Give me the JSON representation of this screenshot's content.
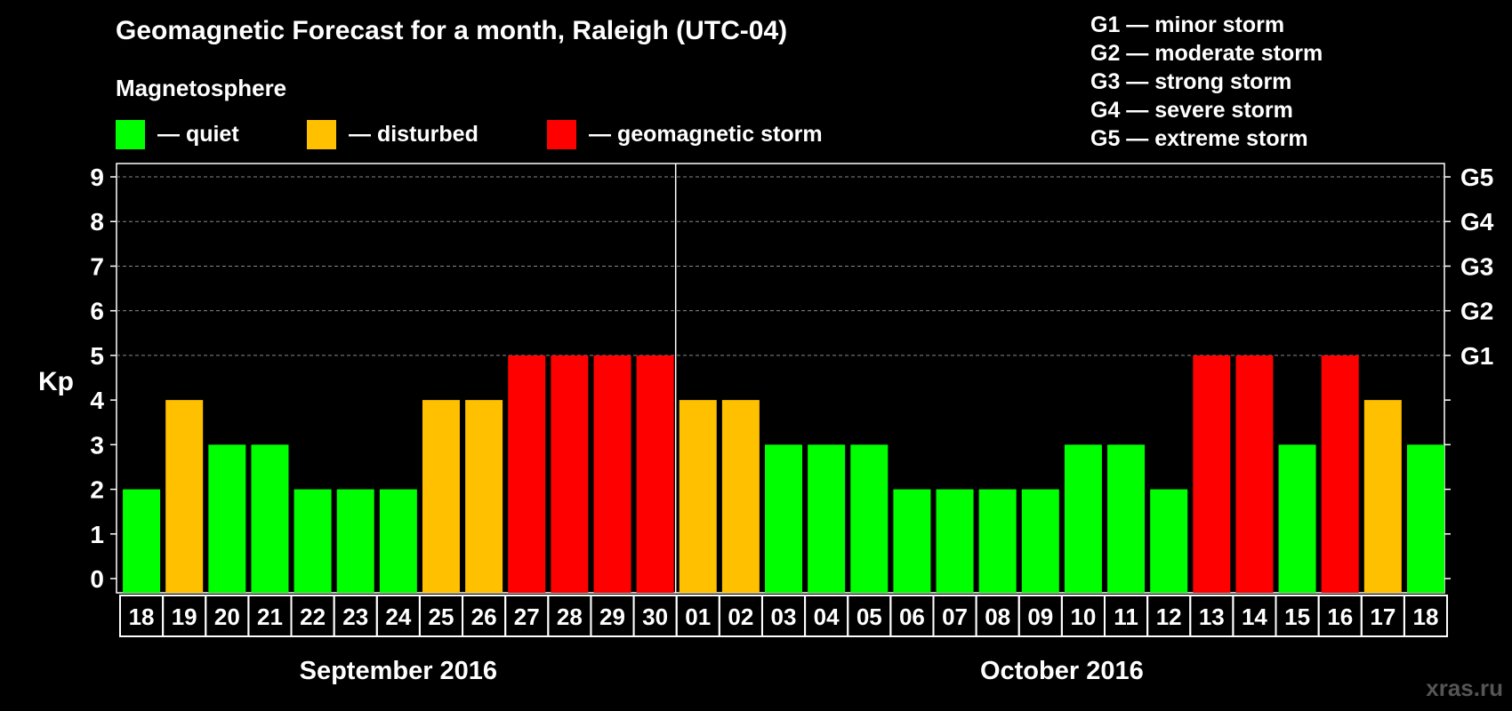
{
  "title": "Geomagnetic Forecast for a month, Raleigh (UTC-04)",
  "subtitle": "Magnetosphere",
  "legend": [
    {
      "label": "— quiet",
      "color": "#00ff00"
    },
    {
      "label": "— disturbed",
      "color": "#ffc000"
    },
    {
      "label": "— geomagnetic storm",
      "color": "#ff0000"
    }
  ],
  "g_scale": [
    "G1 — minor storm",
    "G2 — moderate storm",
    "G3 — strong storm",
    "G4 — severe storm",
    "G5 — extreme storm"
  ],
  "watermark": "xras.ru",
  "colors": {
    "quiet": "#00ff00",
    "disturbed": "#ffc000",
    "storm": "#ff0000",
    "background": "#000000"
  },
  "chart_data": {
    "type": "bar",
    "title": "Geomagnetic Forecast for a month, Raleigh (UTC-04)",
    "ylabel": "Kp",
    "ylim": [
      0,
      9
    ],
    "yticks": [
      "0",
      "1",
      "2",
      "3",
      "4",
      "5",
      "6",
      "7",
      "8",
      "9"
    ],
    "right_ticks": [
      {
        "kp": 5,
        "label": "G1"
      },
      {
        "kp": 6,
        "label": "G2"
      },
      {
        "kp": 7,
        "label": "G3"
      },
      {
        "kp": 8,
        "label": "G4"
      },
      {
        "kp": 9,
        "label": "G5"
      }
    ],
    "grid": true,
    "months": [
      {
        "label": "September 2016",
        "days": [
          "18",
          "19",
          "20",
          "21",
          "22",
          "23",
          "24",
          "25",
          "26",
          "27",
          "28",
          "29",
          "30"
        ]
      },
      {
        "label": "October 2016",
        "days": [
          "01",
          "02",
          "03",
          "04",
          "05",
          "06",
          "07",
          "08",
          "09",
          "10",
          "11",
          "12",
          "13",
          "14",
          "15",
          "16",
          "17",
          "18"
        ]
      }
    ],
    "values": [
      2,
      4,
      3,
      3,
      2,
      2,
      2,
      4,
      4,
      5,
      5,
      5,
      5,
      4,
      4,
      3,
      3,
      3,
      2,
      2,
      2,
      2,
      3,
      3,
      2,
      5,
      5,
      3,
      5,
      4,
      3
    ],
    "levels": [
      "quiet",
      "disturbed",
      "quiet",
      "quiet",
      "quiet",
      "quiet",
      "quiet",
      "disturbed",
      "disturbed",
      "storm",
      "storm",
      "storm",
      "storm",
      "disturbed",
      "disturbed",
      "quiet",
      "quiet",
      "quiet",
      "quiet",
      "quiet",
      "quiet",
      "quiet",
      "quiet",
      "quiet",
      "quiet",
      "storm",
      "storm",
      "quiet",
      "storm",
      "disturbed",
      "quiet"
    ]
  }
}
